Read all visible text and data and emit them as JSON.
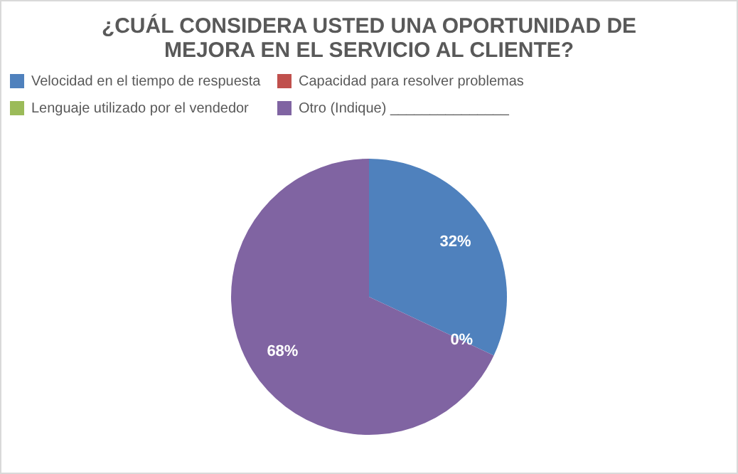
{
  "chart_data": {
    "type": "pie",
    "title": "¿CUÁL CONSIDERA USTED UNA OPORTUNIDAD DE MEJORA EN EL SERVICIO AL CLIENTE?",
    "categories": [
      "Velocidad en el tiempo de respuesta",
      "Capacidad para resolver problemas",
      "Lenguaje utilizado por el vendedor",
      "Otro (Indique) _______________"
    ],
    "values": [
      32,
      0,
      0,
      68
    ],
    "colors": [
      "#4f81bd",
      "#c0504d",
      "#9bbb59",
      "#8064a2"
    ],
    "value_labels": [
      "32%",
      "0%",
      null,
      "68%"
    ],
    "legend": "top"
  }
}
